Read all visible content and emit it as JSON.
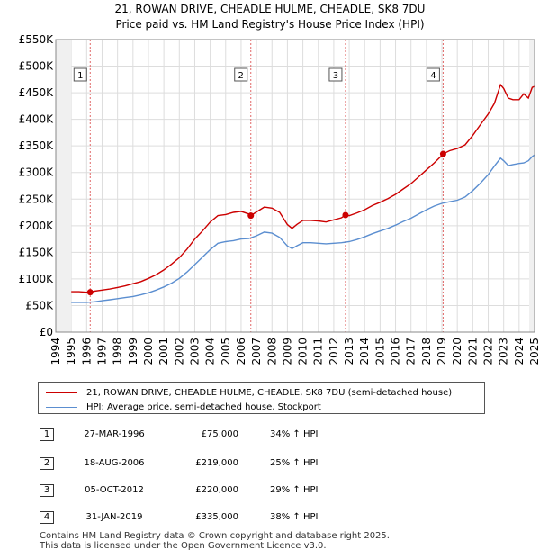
{
  "chart_data": {
    "type": "line",
    "title": "21, ROWAN DRIVE, CHEADLE HULME, CHEADLE, SK8 7DU",
    "subtitle": "Price paid vs. HM Land Registry's House Price Index (HPI)",
    "xlim": [
      1994,
      2025
    ],
    "ylim": [
      0,
      550000
    ],
    "x_ticks": [
      "1994",
      "1995",
      "1996",
      "1997",
      "1998",
      "1999",
      "2000",
      "2001",
      "2002",
      "2003",
      "2004",
      "2005",
      "2006",
      "2007",
      "2008",
      "2009",
      "2010",
      "2011",
      "2012",
      "2013",
      "2014",
      "2015",
      "2016",
      "2017",
      "2018",
      "2019",
      "2020",
      "2021",
      "2022",
      "2023",
      "2024",
      "2025"
    ],
    "y_ticks": [
      {
        "value": 0,
        "label": "£0"
      },
      {
        "value": 50000,
        "label": "£50K"
      },
      {
        "value": 100000,
        "label": "£100K"
      },
      {
        "value": 150000,
        "label": "£150K"
      },
      {
        "value": 200000,
        "label": "£200K"
      },
      {
        "value": 250000,
        "label": "£250K"
      },
      {
        "value": 300000,
        "label": "£300K"
      },
      {
        "value": 350000,
        "label": "£350K"
      },
      {
        "value": 400000,
        "label": "£400K"
      },
      {
        "value": 450000,
        "label": "£450K"
      },
      {
        "value": 500000,
        "label": "£500K"
      },
      {
        "value": 550000,
        "label": "£550K"
      }
    ],
    "grid": true,
    "series": [
      {
        "name": "21, ROWAN DRIVE, CHEADLE HULME, CHEADLE, SK8 7DU (semi-detached house)",
        "color": "#cc0000",
        "points": [
          [
            1995.0,
            76000
          ],
          [
            1995.5,
            76000
          ],
          [
            1996.0,
            75000
          ],
          [
            1996.23,
            75000
          ],
          [
            1996.5,
            77000
          ],
          [
            1997.0,
            79000
          ],
          [
            1997.5,
            81000
          ],
          [
            1998.0,
            84000
          ],
          [
            1998.5,
            87000
          ],
          [
            1999.0,
            91000
          ],
          [
            1999.5,
            95000
          ],
          [
            2000.0,
            101000
          ],
          [
            2000.5,
            108000
          ],
          [
            2001.0,
            117000
          ],
          [
            2001.5,
            128000
          ],
          [
            2002.0,
            140000
          ],
          [
            2002.5,
            156000
          ],
          [
            2003.0,
            175000
          ],
          [
            2003.5,
            190000
          ],
          [
            2004.0,
            207000
          ],
          [
            2004.5,
            219000
          ],
          [
            2005.0,
            221000
          ],
          [
            2005.5,
            225000
          ],
          [
            2006.0,
            227000
          ],
          [
            2006.5,
            222000
          ],
          [
            2006.63,
            219000
          ],
          [
            2007.0,
            226000
          ],
          [
            2007.5,
            235000
          ],
          [
            2008.0,
            233000
          ],
          [
            2008.5,
            225000
          ],
          [
            2009.0,
            202000
          ],
          [
            2009.3,
            195000
          ],
          [
            2009.6,
            202000
          ],
          [
            2010.0,
            210000
          ],
          [
            2010.5,
            210000
          ],
          [
            2011.0,
            209000
          ],
          [
            2011.5,
            207000
          ],
          [
            2012.0,
            211000
          ],
          [
            2012.5,
            215000
          ],
          [
            2012.76,
            220000
          ],
          [
            2013.0,
            219000
          ],
          [
            2013.5,
            224000
          ],
          [
            2014.0,
            230000
          ],
          [
            2014.5,
            238000
          ],
          [
            2015.0,
            244000
          ],
          [
            2015.5,
            251000
          ],
          [
            2016.0,
            259000
          ],
          [
            2016.5,
            269000
          ],
          [
            2017.0,
            279000
          ],
          [
            2017.5,
            292000
          ],
          [
            2018.0,
            305000
          ],
          [
            2018.5,
            318000
          ],
          [
            2019.0,
            332000
          ],
          [
            2019.08,
            335000
          ],
          [
            2019.5,
            341000
          ],
          [
            2020.0,
            345000
          ],
          [
            2020.5,
            352000
          ],
          [
            2021.0,
            370000
          ],
          [
            2021.5,
            390000
          ],
          [
            2022.0,
            410000
          ],
          [
            2022.4,
            430000
          ],
          [
            2022.8,
            465000
          ],
          [
            2023.0,
            458000
          ],
          [
            2023.3,
            440000
          ],
          [
            2023.6,
            437000
          ],
          [
            2024.0,
            437000
          ],
          [
            2024.3,
            448000
          ],
          [
            2024.6,
            440000
          ],
          [
            2024.85,
            460000
          ],
          [
            2025.0,
            462000
          ]
        ]
      },
      {
        "name": "HPI: Average price, semi-detached house, Stockport",
        "color": "#5b8ed0",
        "points": [
          [
            1995.0,
            56000
          ],
          [
            1995.5,
            56000
          ],
          [
            1996.0,
            56000
          ],
          [
            1996.5,
            57000
          ],
          [
            1997.0,
            59000
          ],
          [
            1997.5,
            61000
          ],
          [
            1998.0,
            63000
          ],
          [
            1998.5,
            65000
          ],
          [
            1999.0,
            67000
          ],
          [
            1999.5,
            70000
          ],
          [
            2000.0,
            74000
          ],
          [
            2000.5,
            79000
          ],
          [
            2001.0,
            85000
          ],
          [
            2001.5,
            92000
          ],
          [
            2002.0,
            101000
          ],
          [
            2002.5,
            113000
          ],
          [
            2003.0,
            127000
          ],
          [
            2003.5,
            141000
          ],
          [
            2004.0,
            155000
          ],
          [
            2004.5,
            167000
          ],
          [
            2005.0,
            170000
          ],
          [
            2005.5,
            172000
          ],
          [
            2006.0,
            175000
          ],
          [
            2006.5,
            176000
          ],
          [
            2007.0,
            181000
          ],
          [
            2007.5,
            188000
          ],
          [
            2008.0,
            186000
          ],
          [
            2008.5,
            178000
          ],
          [
            2009.0,
            162000
          ],
          [
            2009.3,
            157000
          ],
          [
            2009.6,
            162000
          ],
          [
            2010.0,
            168000
          ],
          [
            2010.5,
            168000
          ],
          [
            2011.0,
            167000
          ],
          [
            2011.5,
            166000
          ],
          [
            2012.0,
            167000
          ],
          [
            2012.5,
            168000
          ],
          [
            2013.0,
            170000
          ],
          [
            2013.5,
            174000
          ],
          [
            2014.0,
            179000
          ],
          [
            2014.5,
            185000
          ],
          [
            2015.0,
            190000
          ],
          [
            2015.5,
            195000
          ],
          [
            2016.0,
            201000
          ],
          [
            2016.5,
            208000
          ],
          [
            2017.0,
            214000
          ],
          [
            2017.5,
            222000
          ],
          [
            2018.0,
            230000
          ],
          [
            2018.5,
            237000
          ],
          [
            2019.0,
            242000
          ],
          [
            2019.5,
            245000
          ],
          [
            2020.0,
            248000
          ],
          [
            2020.5,
            254000
          ],
          [
            2021.0,
            266000
          ],
          [
            2021.5,
            280000
          ],
          [
            2022.0,
            296000
          ],
          [
            2022.4,
            312000
          ],
          [
            2022.8,
            327000
          ],
          [
            2023.0,
            322000
          ],
          [
            2023.3,
            313000
          ],
          [
            2023.6,
            315000
          ],
          [
            2024.0,
            317000
          ],
          [
            2024.3,
            318000
          ],
          [
            2024.6,
            322000
          ],
          [
            2024.85,
            330000
          ],
          [
            2025.0,
            333000
          ]
        ]
      }
    ],
    "transactions": [
      {
        "num": "1",
        "date": "27-MAR-1996",
        "x": 1996.23,
        "price": 75000,
        "price_label": "£75,000",
        "hpi": "34% ↑ HPI"
      },
      {
        "num": "2",
        "date": "18-AUG-2006",
        "x": 2006.63,
        "price": 219000,
        "price_label": "£219,000",
        "hpi": "25% ↑ HPI"
      },
      {
        "num": "3",
        "date": "05-OCT-2012",
        "x": 2012.76,
        "price": 220000,
        "price_label": "£220,000",
        "hpi": "29% ↑ HPI"
      },
      {
        "num": "4",
        "date": "31-JAN-2019",
        "x": 2019.08,
        "price": 335000,
        "price_label": "£335,000",
        "hpi": "38% ↑ HPI"
      }
    ]
  },
  "legend": {
    "property_label": "21, ROWAN DRIVE, CHEADLE HULME, CHEADLE, SK8 7DU (semi-detached house)",
    "hpi_label": "HPI: Average price, semi-detached house, Stockport"
  },
  "footer": {
    "line1": "Contains HM Land Registry data © Crown copyright and database right 2025.",
    "line2": "This data is licensed under the Open Government Licence v3.0."
  }
}
